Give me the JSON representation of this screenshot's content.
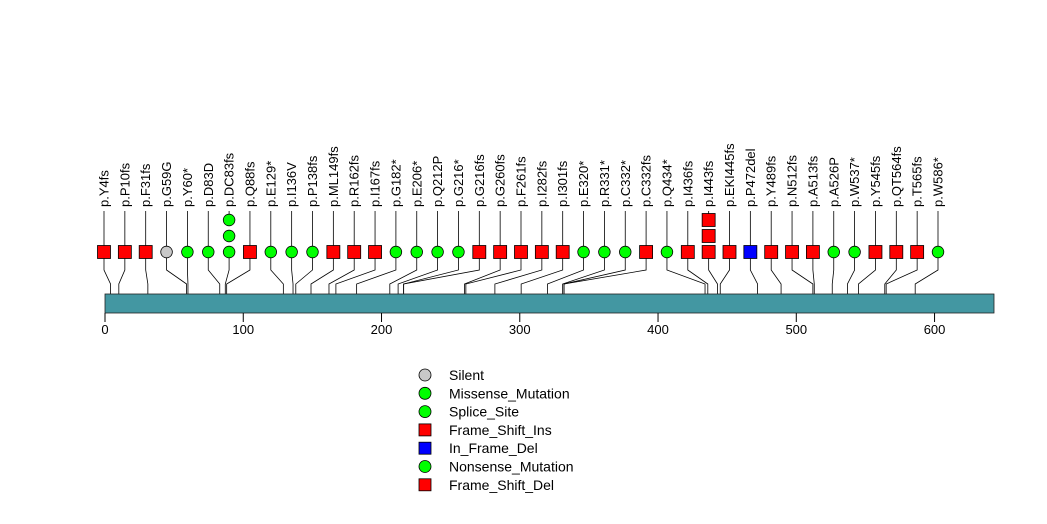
{
  "chart_data": {
    "type": "lollipop",
    "title": "",
    "protein_length": 643,
    "axis": {
      "min": 0,
      "max": 643,
      "ticks": [
        0,
        100,
        200,
        300,
        400,
        500,
        600
      ]
    },
    "colors": {
      "bar": "#4397a2",
      "stem": "#000000",
      "Silent": "#c8c8c8",
      "Missense_Mutation": "#00ff00",
      "Splice_Site": "#00ff00",
      "Frame_Shift_Ins": "#ff0000",
      "In_Frame_Del": "#0000ff",
      "Nonsense_Mutation": "#00ff00",
      "Frame_Shift_Del": "#ff0000"
    },
    "legend": [
      {
        "label": "Silent",
        "shape": "circle",
        "color": "#c8c8c8"
      },
      {
        "label": "Missense_Mutation",
        "shape": "circle",
        "color": "#00ff00"
      },
      {
        "label": "Splice_Site",
        "shape": "circle",
        "color": "#00ff00"
      },
      {
        "label": "Frame_Shift_Ins",
        "shape": "square",
        "color": "#ff0000"
      },
      {
        "label": "In_Frame_Del",
        "shape": "square",
        "color": "#0000ff"
      },
      {
        "label": "Nonsense_Mutation",
        "shape": "circle",
        "color": "#00ff00"
      },
      {
        "label": "Frame_Shift_Del",
        "shape": "square",
        "color": "#ff0000"
      }
    ],
    "mutations": [
      {
        "label": "p.Y4fs",
        "position": 4,
        "markers": [
          "square"
        ],
        "color": "#ff0000"
      },
      {
        "label": "p.P10fs",
        "position": 10,
        "markers": [
          "square"
        ],
        "color": "#ff0000"
      },
      {
        "label": "p.F31fs",
        "position": 31,
        "markers": [
          "square"
        ],
        "color": "#ff0000"
      },
      {
        "label": "p.G59G",
        "position": 59,
        "markers": [
          "circle"
        ],
        "color": "#c8c8c8"
      },
      {
        "label": "p.Y60*",
        "position": 60,
        "markers": [
          "circle"
        ],
        "color": "#00ff00"
      },
      {
        "label": "p.D83D",
        "position": 83,
        "markers": [
          "circle"
        ],
        "color": "#00ff00"
      },
      {
        "label": "p.DC83fs",
        "position": 87,
        "markers": [
          "circle",
          "circle",
          "circle"
        ],
        "color": "#00ff00"
      },
      {
        "label": "p.Q88fs",
        "position": 88,
        "markers": [
          "square"
        ],
        "color": "#ff0000"
      },
      {
        "label": "p.E129*",
        "position": 129,
        "markers": [
          "circle"
        ],
        "color": "#00ff00"
      },
      {
        "label": "p.I136V",
        "position": 136,
        "markers": [
          "circle"
        ],
        "color": "#00ff00"
      },
      {
        "label": "p.P138fs",
        "position": 138,
        "markers": [
          "circle"
        ],
        "color": "#00ff00"
      },
      {
        "label": "p.ML149fs",
        "position": 149,
        "markers": [
          "square"
        ],
        "color": "#ff0000"
      },
      {
        "label": "p.R162fs",
        "position": 162,
        "markers": [
          "square"
        ],
        "color": "#ff0000"
      },
      {
        "label": "p.I167fs",
        "position": 167,
        "markers": [
          "square"
        ],
        "color": "#ff0000"
      },
      {
        "label": "p.G182*",
        "position": 182,
        "markers": [
          "circle"
        ],
        "color": "#00ff00"
      },
      {
        "label": "p.E206*",
        "position": 206,
        "markers": [
          "circle"
        ],
        "color": "#00ff00"
      },
      {
        "label": "p.Q212P",
        "position": 212,
        "markers": [
          "circle"
        ],
        "color": "#00ff00"
      },
      {
        "label": "p.G216*",
        "position": 216,
        "markers": [
          "circle"
        ],
        "color": "#00ff00"
      },
      {
        "label": "p.G216fs",
        "position": 216,
        "markers": [
          "square"
        ],
        "color": "#ff0000"
      },
      {
        "label": "p.G260fs",
        "position": 260,
        "markers": [
          "square"
        ],
        "color": "#ff0000"
      },
      {
        "label": "p.F261fs",
        "position": 261,
        "markers": [
          "square"
        ],
        "color": "#ff0000"
      },
      {
        "label": "p.I282fs",
        "position": 282,
        "markers": [
          "square"
        ],
        "color": "#ff0000"
      },
      {
        "label": "p.I301fs",
        "position": 301,
        "markers": [
          "square"
        ],
        "color": "#ff0000"
      },
      {
        "label": "p.E320*",
        "position": 320,
        "markers": [
          "circle"
        ],
        "color": "#00ff00"
      },
      {
        "label": "p.R331*",
        "position": 331,
        "markers": [
          "circle"
        ],
        "color": "#00ff00"
      },
      {
        "label": "p.C332*",
        "position": 332,
        "markers": [
          "circle"
        ],
        "color": "#00ff00"
      },
      {
        "label": "p.C332fs",
        "position": 332,
        "markers": [
          "square"
        ],
        "color": "#ff0000"
      },
      {
        "label": "p.Q434*",
        "position": 434,
        "markers": [
          "circle"
        ],
        "color": "#00ff00"
      },
      {
        "label": "p.I436fs",
        "position": 436,
        "markers": [
          "square"
        ],
        "color": "#ff0000"
      },
      {
        "label": "p.I443fs",
        "position": 443,
        "markers": [
          "square",
          "square",
          "square"
        ],
        "color": "#ff0000"
      },
      {
        "label": "p.EKI445fs",
        "position": 445,
        "markers": [
          "square"
        ],
        "color": "#ff0000"
      },
      {
        "label": "p.P472del",
        "position": 472,
        "markers": [
          "square"
        ],
        "color": "#0000ff"
      },
      {
        "label": "p.Y489fs",
        "position": 489,
        "markers": [
          "square"
        ],
        "color": "#ff0000"
      },
      {
        "label": "p.N512fs",
        "position": 512,
        "markers": [
          "square"
        ],
        "color": "#ff0000"
      },
      {
        "label": "p.A513fs",
        "position": 513,
        "markers": [
          "square"
        ],
        "color": "#ff0000"
      },
      {
        "label": "p.A526P",
        "position": 526,
        "markers": [
          "circle"
        ],
        "color": "#00ff00"
      },
      {
        "label": "p.W537*",
        "position": 537,
        "markers": [
          "circle"
        ],
        "color": "#00ff00"
      },
      {
        "label": "p.Y545fs",
        "position": 545,
        "markers": [
          "square"
        ],
        "color": "#ff0000"
      },
      {
        "label": "p.QT564fs",
        "position": 564,
        "markers": [
          "square"
        ],
        "color": "#ff0000"
      },
      {
        "label": "p.T565fs",
        "position": 565,
        "markers": [
          "square"
        ],
        "color": "#ff0000"
      },
      {
        "label": "p.W586*",
        "position": 586,
        "markers": [
          "circle"
        ],
        "color": "#00ff00"
      }
    ]
  }
}
